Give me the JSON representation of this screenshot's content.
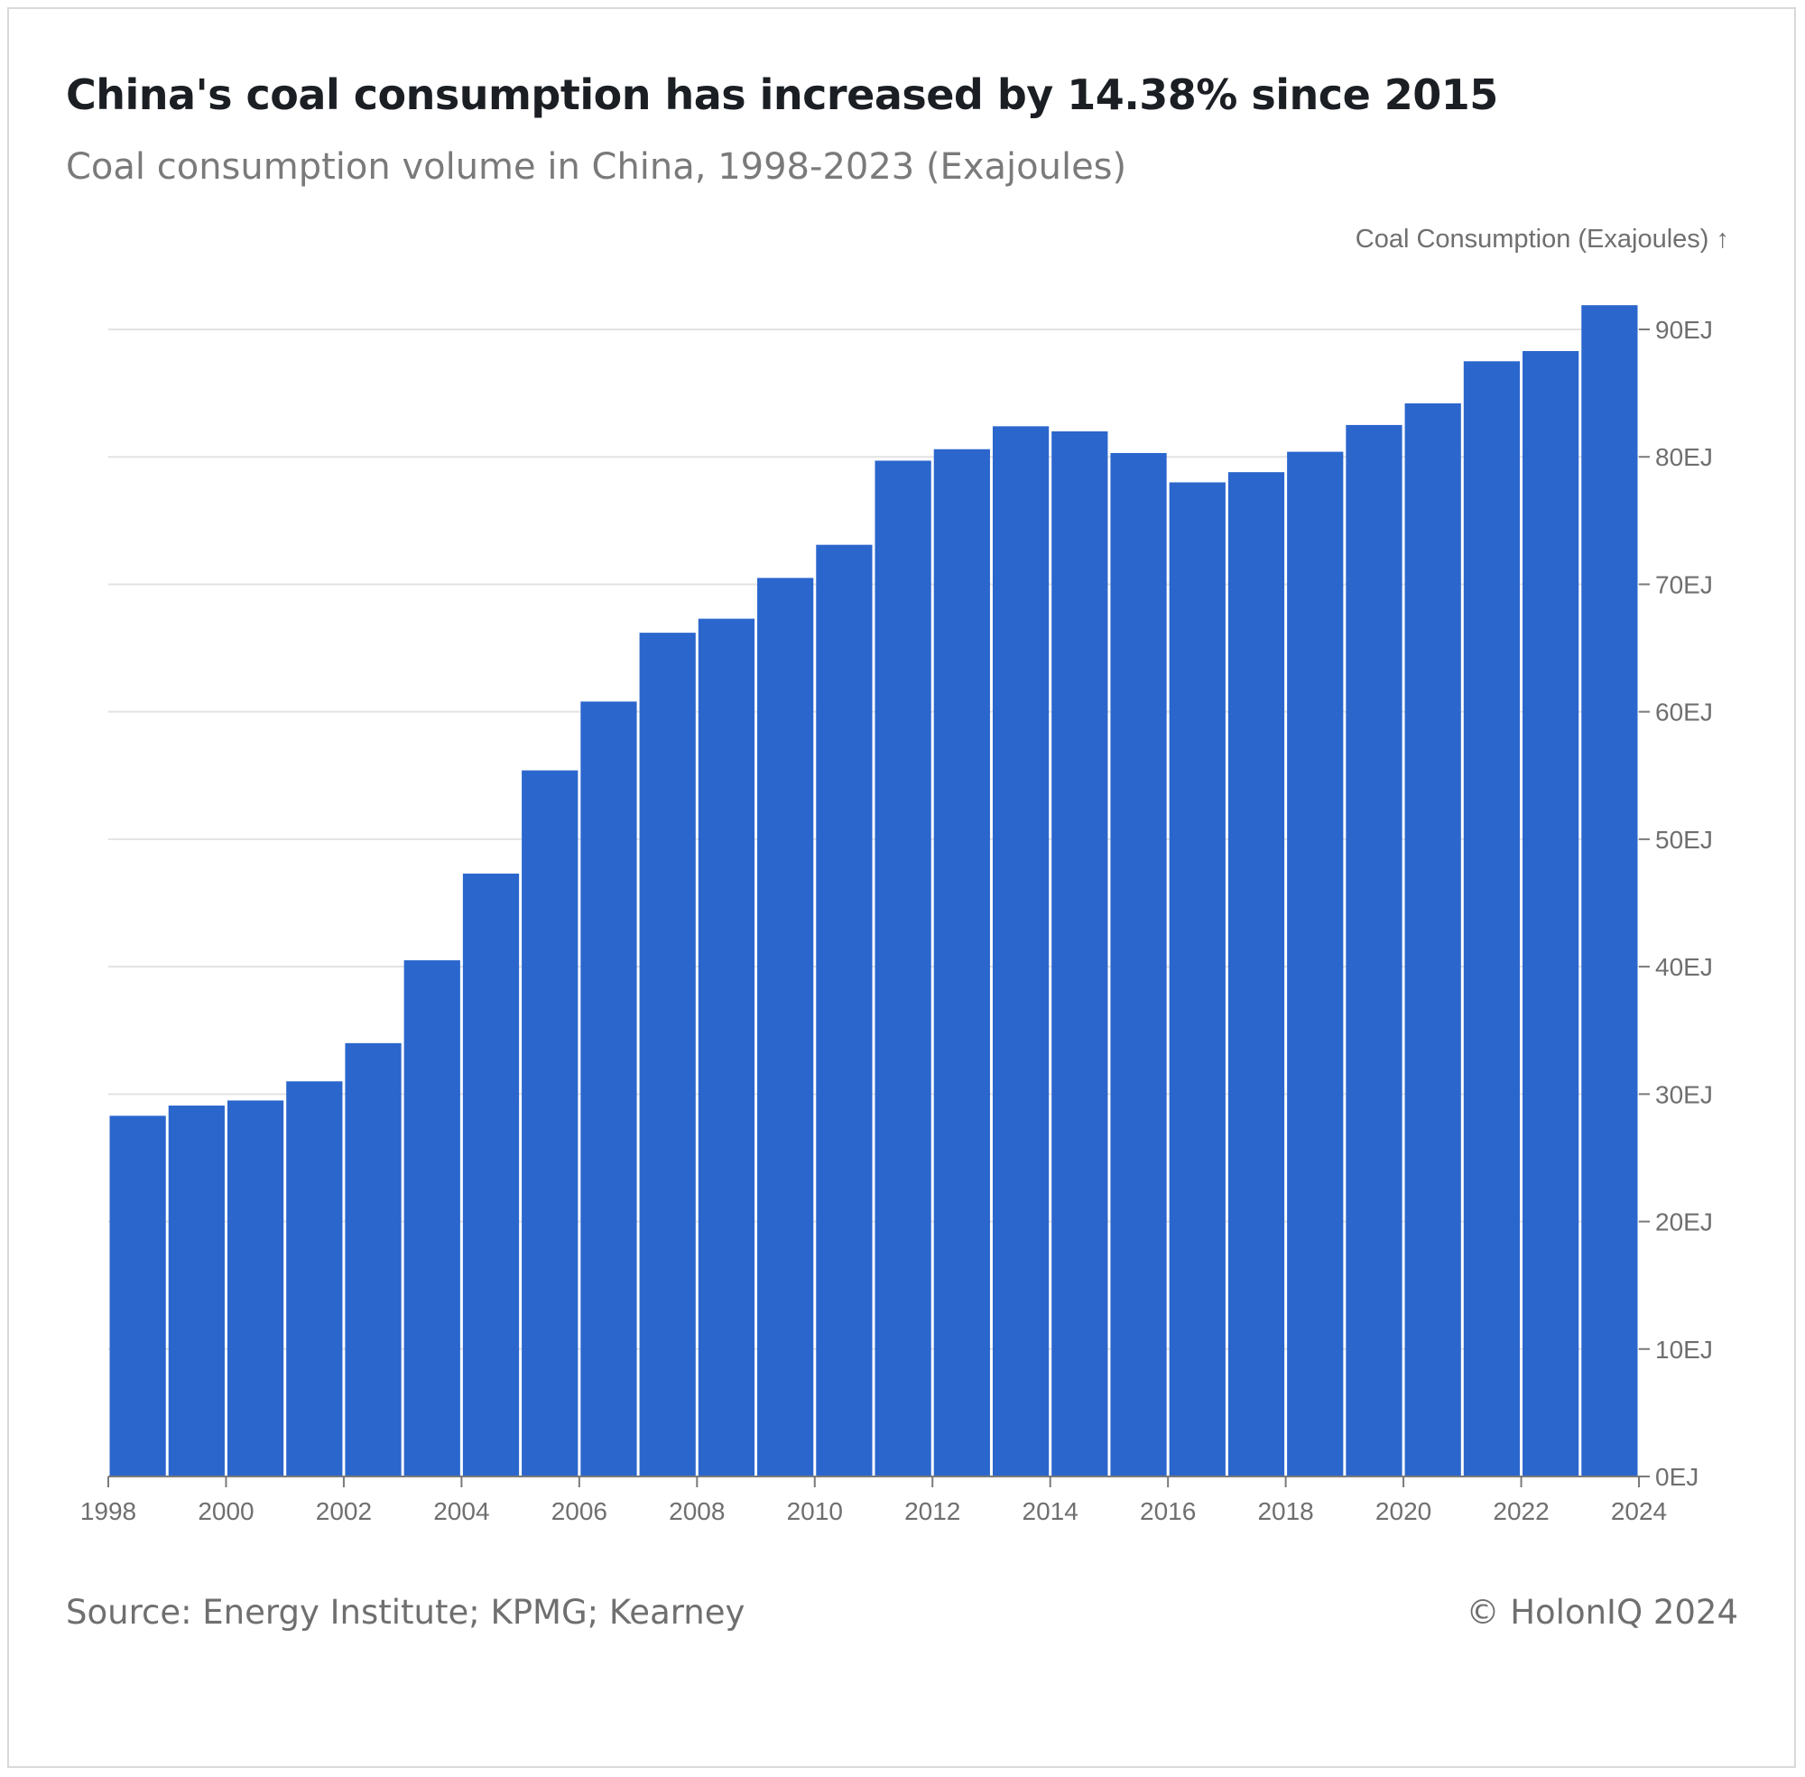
{
  "chart_data": {
    "type": "bar",
    "title": "China's coal consumption has increased by 14.38% since 2015",
    "subtitle": "Coal consumption volume in China, 1998-2023 (Exajoules)",
    "ylabel": "Coal Consumption (Exajoules) ↑",
    "y_axis_position": "right",
    "ylim": [
      0,
      90
    ],
    "xlim": [
      1998,
      2024
    ],
    "y_ticks": [
      "0EJ",
      "10EJ",
      "20EJ",
      "30EJ",
      "40EJ",
      "50EJ",
      "60EJ",
      "70EJ",
      "80EJ",
      "90EJ"
    ],
    "y_tick_values": [
      0,
      10,
      20,
      30,
      40,
      50,
      60,
      70,
      80,
      90
    ],
    "x_ticks": [
      "1998",
      "2000",
      "2002",
      "2004",
      "2006",
      "2008",
      "2010",
      "2012",
      "2014",
      "2016",
      "2018",
      "2020",
      "2022",
      "2024"
    ],
    "x_tick_values": [
      1998,
      2000,
      2002,
      2004,
      2006,
      2008,
      2010,
      2012,
      2014,
      2016,
      2018,
      2020,
      2022,
      2024
    ],
    "grid": true,
    "bar_color": "#2a66cc",
    "categories": [
      "1998",
      "1999",
      "2000",
      "2001",
      "2002",
      "2003",
      "2004",
      "2005",
      "2006",
      "2007",
      "2008",
      "2009",
      "2010",
      "2011",
      "2012",
      "2013",
      "2014",
      "2015",
      "2016",
      "2017",
      "2018",
      "2019",
      "2020",
      "2021",
      "2022",
      "2023"
    ],
    "values": [
      28.3,
      29.1,
      29.5,
      31.0,
      34.0,
      40.5,
      47.3,
      55.4,
      60.8,
      66.2,
      67.3,
      70.5,
      73.1,
      79.7,
      80.6,
      82.4,
      82.0,
      80.3,
      78.0,
      78.8,
      80.4,
      82.5,
      84.2,
      87.5,
      88.3,
      91.9
    ]
  },
  "source": "Source: Energy Institute; KPMG; Kearney",
  "copyright": "© HolonIQ 2024"
}
